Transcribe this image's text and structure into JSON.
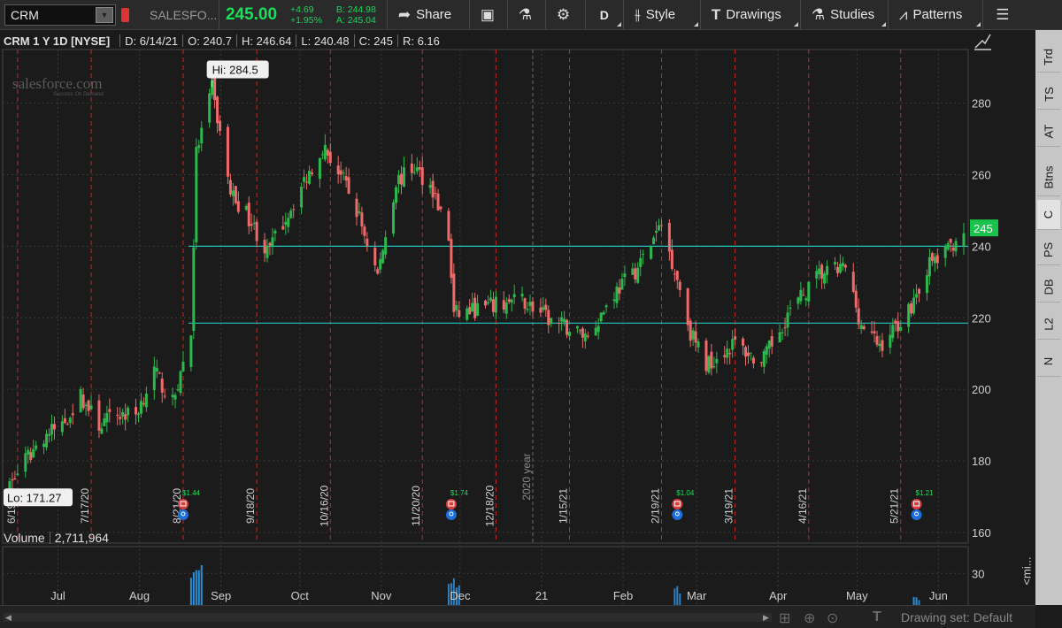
{
  "toolbar": {
    "symbol": "CRM",
    "symbol_name": "SALESFO...",
    "last_price": "245.00",
    "net_change": "+4.69",
    "pct_change": "+1.95%",
    "bid": "B: 244.98",
    "ask": "A: 245.04",
    "share_label": "Share",
    "aggregation": "D",
    "style_label": "Style",
    "drawings_label": "Drawings",
    "studies_label": "Studies",
    "patterns_label": "Patterns"
  },
  "side_tabs": [
    "Trd",
    "TS",
    "AT",
    "Btns",
    "C",
    "PS",
    "DB",
    "L2",
    "N"
  ],
  "chart_header": {
    "title": "CRM 1 Y 1D [NYSE]",
    "date": "D: 6/14/21",
    "open": "O: 240.7",
    "high": "H: 246.64",
    "low": "L: 240.48",
    "close": "C: 245",
    "range": "R: 6.16"
  },
  "logo": {
    "brand": "salesforce.com",
    "tagline": "Success On Demand"
  },
  "volume_header": {
    "label": "Volume",
    "value": "2,711,964"
  },
  "bottom_bar": {
    "drawing_set": "Drawing set: Default"
  },
  "mini_label": "<mi...",
  "chart_data": {
    "type": "candlestick",
    "price_axis": {
      "ticks": [
        160,
        180,
        200,
        220,
        240,
        260,
        280
      ],
      "ylim": [
        157,
        295
      ]
    },
    "time_axis": {
      "months": [
        "Jul",
        "Aug",
        "Sep",
        "Oct",
        "Nov",
        "Dec",
        "21",
        "Feb",
        "Mar",
        "Apr",
        "May",
        "Jun"
      ]
    },
    "date_markers": [
      "6/19/20",
      "7/17/20",
      "8/21/20",
      "9/18/20",
      "10/16/20",
      "11/20/20",
      "12/18/20",
      "1/15/21",
      "2/19/21",
      "3/19/21",
      "4/16/21",
      "5/21/21"
    ],
    "year_marker": "2020 year",
    "high_label": "Hi: 284.5",
    "low_label": "Lo: 171.27",
    "last_price_label": "245",
    "horizontal_lines": [
      240,
      218.5
    ],
    "earnings": [
      {
        "label": "$1.44",
        "date": "8/21/20"
      },
      {
        "label": "$1.74",
        "date": "12/1/20"
      },
      {
        "label": "$1.04",
        "date": "2/25/21"
      },
      {
        "label": "$1.21",
        "date": "5/27/21"
      }
    ],
    "price_path": [
      {
        "d": "2020-06-15",
        "p": 172
      },
      {
        "d": "2020-06-22",
        "p": 180
      },
      {
        "d": "2020-06-29",
        "p": 187
      },
      {
        "d": "2020-07-06",
        "p": 190
      },
      {
        "d": "2020-07-13",
        "p": 198
      },
      {
        "d": "2020-07-20",
        "p": 190
      },
      {
        "d": "2020-07-27",
        "p": 193
      },
      {
        "d": "2020-08-03",
        "p": 193
      },
      {
        "d": "2020-08-10",
        "p": 205
      },
      {
        "d": "2020-08-17",
        "p": 196
      },
      {
        "d": "2020-08-24",
        "p": 216
      },
      {
        "d": "2020-08-26",
        "p": 266
      },
      {
        "d": "2020-09-01",
        "p": 284
      },
      {
        "d": "2020-09-08",
        "p": 255
      },
      {
        "d": "2020-09-15",
        "p": 248
      },
      {
        "d": "2020-09-22",
        "p": 238
      },
      {
        "d": "2020-09-29",
        "p": 248
      },
      {
        "d": "2020-10-06",
        "p": 258
      },
      {
        "d": "2020-10-13",
        "p": 268
      },
      {
        "d": "2020-10-20",
        "p": 260
      },
      {
        "d": "2020-10-27",
        "p": 248
      },
      {
        "d": "2020-11-03",
        "p": 232
      },
      {
        "d": "2020-11-10",
        "p": 258
      },
      {
        "d": "2020-11-17",
        "p": 262
      },
      {
        "d": "2020-11-24",
        "p": 256
      },
      {
        "d": "2020-11-30",
        "p": 242
      },
      {
        "d": "2020-12-02",
        "p": 221
      },
      {
        "d": "2020-12-15",
        "p": 223
      },
      {
        "d": "2020-12-28",
        "p": 225
      },
      {
        "d": "2021-01-08",
        "p": 219
      },
      {
        "d": "2021-01-22",
        "p": 215
      },
      {
        "d": "2021-02-01",
        "p": 227
      },
      {
        "d": "2021-02-10",
        "p": 234
      },
      {
        "d": "2021-02-19",
        "p": 246
      },
      {
        "d": "2021-02-25",
        "p": 231
      },
      {
        "d": "2021-03-02",
        "p": 216
      },
      {
        "d": "2021-03-08",
        "p": 207
      },
      {
        "d": "2021-03-19",
        "p": 213
      },
      {
        "d": "2021-03-29",
        "p": 207
      },
      {
        "d": "2021-04-08",
        "p": 221
      },
      {
        "d": "2021-04-20",
        "p": 232
      },
      {
        "d": "2021-04-30",
        "p": 234
      },
      {
        "d": "2021-05-06",
        "p": 218
      },
      {
        "d": "2021-05-13",
        "p": 212
      },
      {
        "d": "2021-05-24",
        "p": 222
      },
      {
        "d": "2021-06-01",
        "p": 235
      },
      {
        "d": "2021-06-07",
        "p": 238
      },
      {
        "d": "2021-06-14",
        "p": 245
      }
    ],
    "volume_axis": {
      "ticks": [
        30
      ]
    },
    "volume_spikes": [
      {
        "d": "2020-08-26",
        "v": 37
      },
      {
        "d": "2020-12-02",
        "v": 28
      },
      {
        "d": "2021-02-26",
        "v": 22
      },
      {
        "d": "2021-05-28",
        "v": 14
      }
    ],
    "colors": {
      "up": "#2db84d",
      "down": "#ef6a6a",
      "hline": "#1fc6c2",
      "marker": "#c62828",
      "grid": "#3a3a3a",
      "last_price_bg": "#19c24b"
    }
  }
}
